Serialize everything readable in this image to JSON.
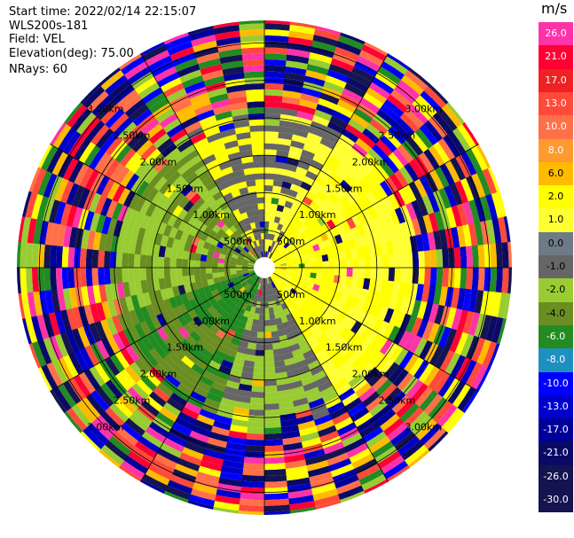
{
  "header": {
    "start_time": "Start time: 2022/02/14 22:15:07",
    "instrument": "WLS200s-181",
    "field": "Field: VEL",
    "elevation": "Elevation(deg): 75.00",
    "nrays": "NRays: 60"
  },
  "colorbar": {
    "title": "m/s",
    "levels": [
      {
        "label": "26.0",
        "color": "#ff33a8"
      },
      {
        "label": "21.0",
        "color": "#ff0033"
      },
      {
        "label": "17.0",
        "color": "#ee2222"
      },
      {
        "label": "13.0",
        "color": "#ff4a3a"
      },
      {
        "label": "10.0",
        "color": "#ff7048"
      },
      {
        "label": "8.0",
        "color": "#ff9a30"
      },
      {
        "label": "6.0",
        "color": "#ffbb00"
      },
      {
        "label": "2.0",
        "color": "#ffff00"
      },
      {
        "label": "1.0",
        "color": "#ffff33"
      },
      {
        "label": "0.0",
        "color": "#6e7a86"
      },
      {
        "label": "-1.0",
        "color": "#666666"
      },
      {
        "label": "-2.0",
        "color": "#99cc33"
      },
      {
        "label": "-4.0",
        "color": "#6b8e23"
      },
      {
        "label": "-6.0",
        "color": "#228b22"
      },
      {
        "label": "-8.0",
        "color": "#1e90c0"
      },
      {
        "label": "-10.0",
        "color": "#0000ff"
      },
      {
        "label": "-13.0",
        "color": "#0000cc"
      },
      {
        "label": "-17.0",
        "color": "#000099"
      },
      {
        "label": "-21.0",
        "color": "#0a0a66"
      },
      {
        "label": "-26.0",
        "color": "#141450"
      },
      {
        "label": "-30.0",
        "color": "#141450"
      }
    ]
  },
  "chart_data": {
    "type": "heatmap",
    "plot_type": "PPI polar scan",
    "field": "VEL",
    "units": "m/s",
    "nrays": 60,
    "range_rings_km": [
      0.5,
      1.0,
      1.5,
      2.0,
      2.5,
      3.0
    ],
    "ring_labels": [
      "500m",
      "1.00km",
      "1.50km",
      "2.00km",
      "2.50km",
      "3.00km"
    ],
    "spoke_step_deg": 30,
    "sectors": [
      {
        "az_start": 0,
        "az_end": 30,
        "inner_label": "1.0",
        "mid_label": "-1.0"
      },
      {
        "az_start": 30,
        "az_end": 150,
        "inner_label": "2.0",
        "mid_label": "1.0"
      },
      {
        "az_start": 150,
        "az_end": 200,
        "inner_label": "-1.0",
        "mid_label": "-2.0"
      },
      {
        "az_start": 200,
        "az_end": 250,
        "inner_label": "-6.0",
        "mid_label": "-4.0"
      },
      {
        "az_start": 250,
        "az_end": 330,
        "inner_label": "-4.0",
        "mid_label": "-2.0"
      },
      {
        "az_start": 330,
        "az_end": 360,
        "inner_label": "-1.0",
        "mid_label": "2.0"
      }
    ],
    "outer_range_km": [
      2.0,
      3.2
    ],
    "outer_values": [
      "26.0",
      "21.0",
      "13.0",
      "10.0",
      "6.0",
      "2.0",
      "-2.0",
      "-6.0",
      "-10.0",
      "-13.0",
      "-17.0",
      "-21.0",
      "-26.0"
    ]
  }
}
